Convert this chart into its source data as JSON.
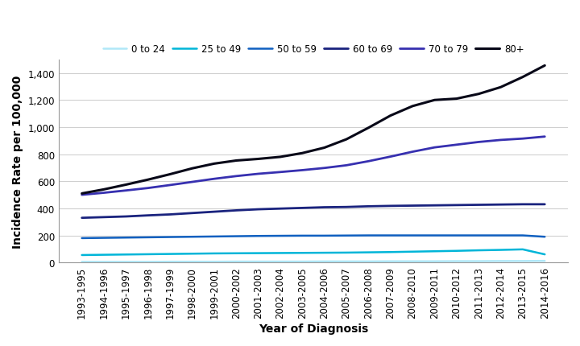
{
  "x_labels": [
    "1993-1995",
    "1994-1996",
    "1995-1997",
    "1996-1998",
    "1997-1999",
    "1998-2000",
    "1999-2001",
    "2000-2002",
    "2001-2003",
    "2002-2004",
    "2003-2005",
    "2004-2006",
    "2005-2007",
    "2006-2008",
    "2007-2009",
    "2008-2010",
    "2009-2011",
    "2010-2012",
    "2011-2013",
    "2012-2014",
    "2013-2015",
    "2014-2016"
  ],
  "series": {
    "0 to 24": {
      "color": "#b0e8f8",
      "linewidth": 1.8,
      "values": [
        5,
        5,
        5,
        5,
        6,
        6,
        6,
        7,
        7,
        7,
        7,
        8,
        8,
        8,
        9,
        9,
        9,
        10,
        10,
        11,
        11,
        12
      ]
    },
    "25 to 49": {
      "color": "#00b5d8",
      "linewidth": 1.8,
      "values": [
        55,
        57,
        59,
        61,
        63,
        65,
        67,
        68,
        69,
        70,
        71,
        72,
        73,
        75,
        77,
        80,
        83,
        86,
        90,
        93,
        97,
        60
      ]
    },
    "50 to 59": {
      "color": "#1060c0",
      "linewidth": 1.8,
      "values": [
        180,
        182,
        184,
        186,
        188,
        190,
        192,
        194,
        196,
        197,
        198,
        198,
        199,
        200,
        200,
        200,
        200,
        200,
        200,
        200,
        200,
        190
      ]
    },
    "60 to 69": {
      "color": "#1a237e",
      "linewidth": 2.0,
      "values": [
        330,
        335,
        340,
        348,
        355,
        365,
        375,
        385,
        393,
        398,
        403,
        408,
        410,
        415,
        418,
        420,
        422,
        424,
        426,
        428,
        430,
        430
      ]
    },
    "70 to 79": {
      "color": "#3730b0",
      "linewidth": 2.0,
      "values": [
        500,
        515,
        532,
        550,
        572,
        595,
        618,
        638,
        655,
        668,
        682,
        698,
        718,
        748,
        782,
        818,
        850,
        870,
        890,
        905,
        915,
        930
      ]
    },
    "80+": {
      "color": "#080818",
      "linewidth": 2.2,
      "values": [
        510,
        540,
        575,
        612,
        652,
        695,
        730,
        753,
        765,
        780,
        808,
        848,
        910,
        995,
        1085,
        1155,
        1200,
        1210,
        1245,
        1295,
        1370,
        1455
      ]
    }
  },
  "xlabel": "Year of Diagnosis",
  "ylabel": "Incidence Rate per 100,000",
  "ylim": [
    0,
    1500
  ],
  "yticks": [
    0,
    200,
    400,
    600,
    800,
    1000,
    1200,
    1400
  ],
  "background_color": "#ffffff",
  "grid_color": "#d0d0d0",
  "axis_fontsize": 10,
  "tick_fontsize": 8.5
}
